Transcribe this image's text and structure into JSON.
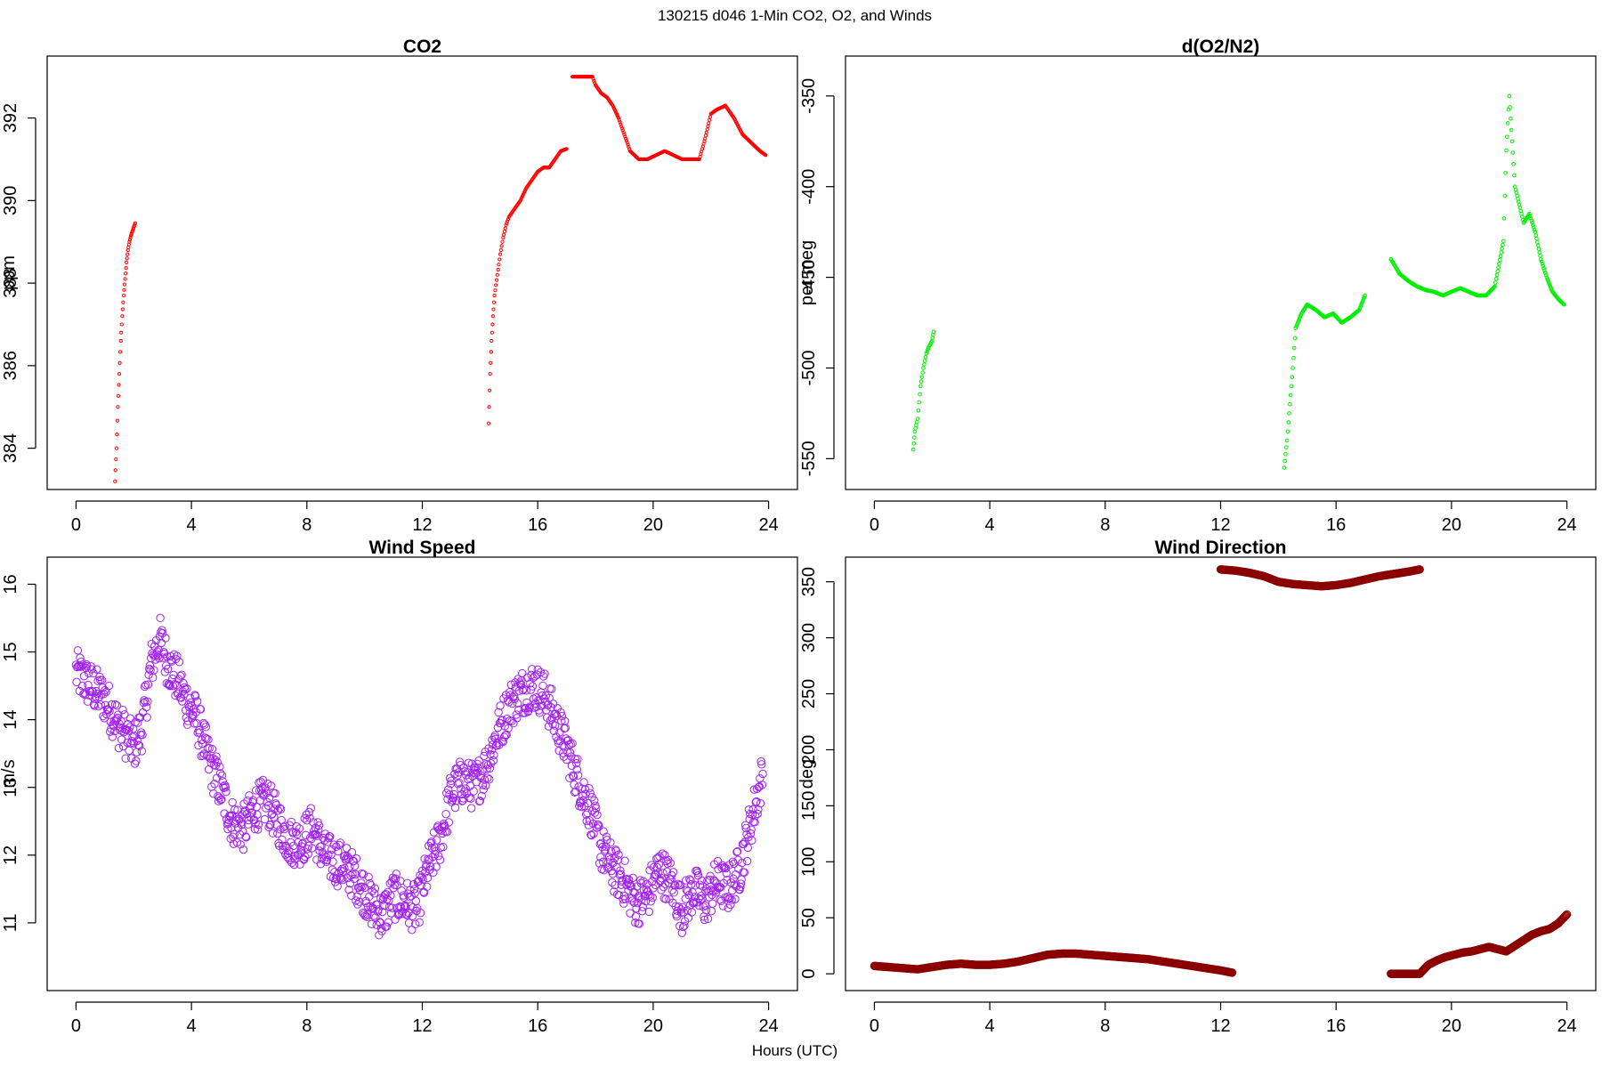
{
  "figure": {
    "title": "130215   d046   1-Min CO2, O2, and Winds",
    "xlabel": "Hours (UTC)"
  },
  "chart_data": [
    {
      "type": "scatter",
      "title": "CO2",
      "ylabel": "ppm",
      "xlim": [
        -1,
        25
      ],
      "ylim": [
        383.0,
        393.5
      ],
      "xticks": [
        0,
        4,
        8,
        12,
        16,
        20,
        24
      ],
      "yticks": [
        384,
        386,
        388,
        390,
        392
      ],
      "color": "#ff0000",
      "marker_size": 1.6,
      "segments": [
        {
          "x": [
            1.35,
            1.4,
            1.45,
            1.5,
            1.55,
            1.6,
            1.65,
            1.7,
            1.75,
            1.8,
            1.85,
            1.9,
            1.95,
            2.0,
            2.05
          ],
          "y": [
            383.2,
            384.0,
            385.0,
            385.8,
            386.6,
            387.2,
            387.7,
            388.1,
            388.5,
            388.8,
            389.0,
            389.15,
            389.25,
            389.35,
            389.45
          ]
        },
        {
          "x": [
            14.3,
            14.35,
            14.4,
            14.45,
            14.5,
            14.6,
            14.7,
            14.8,
            14.9,
            15.0,
            15.2,
            15.4,
            15.6,
            15.8,
            16.0,
            16.2,
            16.4,
            16.6,
            16.8,
            17.0
          ],
          "y": [
            384.6,
            385.8,
            386.6,
            387.2,
            387.7,
            388.2,
            388.7,
            389.1,
            389.4,
            389.6,
            389.8,
            390.0,
            390.3,
            390.5,
            390.7,
            390.8,
            390.8,
            391.0,
            391.2,
            391.25
          ]
        },
        {
          "x": [
            17.2,
            17.9,
            18.0,
            18.2,
            18.4,
            18.6,
            18.8,
            19.0,
            19.2,
            19.5,
            19.8,
            20.1,
            20.4,
            20.7,
            21.0,
            21.3,
            21.6,
            21.8,
            22.0,
            22.2,
            22.5,
            22.8,
            23.1,
            23.4,
            23.7,
            23.9
          ],
          "y": [
            393.0,
            393.0,
            392.8,
            392.6,
            392.5,
            392.3,
            392.0,
            391.6,
            391.2,
            391.0,
            391.0,
            391.1,
            391.2,
            391.1,
            391.0,
            391.0,
            391.0,
            391.5,
            392.1,
            392.2,
            392.3,
            392.0,
            391.6,
            391.4,
            391.2,
            391.1
          ]
        }
      ]
    },
    {
      "type": "scatter",
      "title": "d(O2/N2)",
      "ylabel": "per meg",
      "xlim": [
        -1,
        25
      ],
      "ylim": [
        -567,
        -328
      ],
      "xticks": [
        0,
        4,
        8,
        12,
        16,
        20,
        24
      ],
      "yticks": [
        -550,
        -500,
        -450,
        -400,
        -350
      ],
      "color": "#00ee00",
      "marker_size": 1.8,
      "segments": [
        {
          "x": [
            1.35,
            1.4,
            1.5,
            1.6,
            1.7,
            1.8,
            1.9,
            2.0,
            2.05
          ],
          "y": [
            -545,
            -535,
            -528,
            -510,
            -500,
            -492,
            -488,
            -485,
            -480
          ]
        },
        {
          "x": [
            14.2,
            14.3,
            14.4,
            14.5,
            14.6,
            14.8,
            15.0,
            15.3,
            15.6,
            15.9,
            16.2,
            16.5,
            16.8,
            17.0
          ],
          "y": [
            -555,
            -540,
            -520,
            -500,
            -478,
            -470,
            -465,
            -468,
            -472,
            -470,
            -475,
            -472,
            -468,
            -460
          ]
        },
        {
          "x": [
            17.9,
            18.2,
            18.5,
            18.8,
            19.1,
            19.4,
            19.7,
            20.0,
            20.3,
            20.6,
            20.9,
            21.2,
            21.5,
            21.8,
            21.9,
            22.0,
            22.2,
            22.5,
            22.7,
            22.9,
            23.1,
            23.3,
            23.5,
            23.7,
            23.9
          ],
          "y": [
            -440,
            -448,
            -452,
            -455,
            -457,
            -458,
            -460,
            -458,
            -456,
            -458,
            -460,
            -460,
            -455,
            -430,
            -380,
            -350,
            -400,
            -420,
            -415,
            -425,
            -440,
            -450,
            -458,
            -462,
            -465
          ]
        }
      ]
    },
    {
      "type": "scatter",
      "title": "Wind Speed",
      "ylabel": "m/s",
      "xlim": [
        -1,
        25
      ],
      "ylim": [
        10.0,
        16.4
      ],
      "xticks": [
        0,
        4,
        8,
        12,
        16,
        20,
        24
      ],
      "yticks": [
        11,
        12,
        13,
        14,
        15,
        16
      ],
      "color": "#a020f0",
      "marker_size": 4.2,
      "noise": 0.35,
      "x": [
        0,
        0.5,
        1.0,
        1.5,
        2.0,
        2.3,
        2.6,
        2.9,
        3.2,
        3.5,
        3.8,
        4.2,
        4.6,
        5.0,
        5.4,
        5.8,
        6.2,
        6.6,
        7.0,
        7.4,
        7.8,
        8.2,
        8.6,
        9.0,
        9.4,
        9.8,
        10.2,
        10.6,
        11.0,
        11.4,
        11.8,
        12.2,
        12.6,
        13.0,
        13.4,
        13.8,
        14.2,
        14.6,
        15.0,
        15.4,
        15.8,
        16.2,
        16.6,
        17.0,
        17.4,
        17.8,
        18.2,
        18.6,
        19.0,
        19.4,
        19.8,
        20.2,
        20.6,
        21.0,
        21.4,
        21.8,
        22.2,
        22.6,
        23.0,
        23.4,
        23.8
      ],
      "y": [
        14.7,
        14.5,
        14.3,
        13.9,
        13.6,
        13.9,
        14.8,
        15.2,
        14.8,
        14.6,
        14.3,
        14.0,
        13.4,
        13.0,
        12.5,
        12.4,
        12.7,
        12.8,
        12.5,
        12.2,
        12.2,
        12.4,
        12.0,
        11.9,
        11.8,
        11.6,
        11.3,
        11.1,
        11.4,
        11.3,
        11.2,
        11.8,
        12.2,
        12.9,
        13.1,
        13.0,
        13.3,
        13.8,
        14.2,
        14.4,
        14.5,
        14.4,
        14.0,
        13.6,
        13.1,
        12.7,
        12.1,
        11.8,
        11.6,
        11.3,
        11.4,
        11.8,
        11.6,
        11.2,
        11.5,
        11.3,
        11.6,
        11.5,
        11.8,
        12.5,
        13.2
      ]
    },
    {
      "type": "scatter",
      "title": "Wind Direction",
      "ylabel": "deg",
      "xlim": [
        -1,
        25
      ],
      "ylim": [
        -15,
        372
      ],
      "xticks": [
        0,
        4,
        8,
        12,
        16,
        20,
        24
      ],
      "yticks": [
        0,
        50,
        100,
        150,
        200,
        250,
        300,
        350
      ],
      "color": "#8b0000",
      "marker_size": 4.2,
      "segments": [
        {
          "x": [
            0,
            0.5,
            1.0,
            1.5,
            2.0,
            2.5,
            3.0,
            3.5,
            4.0,
            4.5,
            5.0,
            5.5,
            6.0,
            6.5,
            7.0,
            7.5,
            8.0,
            8.5,
            9.0,
            9.5,
            10.0,
            10.5,
            11.0,
            11.5,
            12.0,
            12.4
          ],
          "y": [
            7,
            6,
            5,
            4,
            6,
            8,
            9,
            8,
            8,
            9,
            11,
            14,
            17,
            18,
            18,
            17,
            16,
            15,
            14,
            13,
            11,
            9,
            7,
            5,
            3,
            1
          ]
        },
        {
          "x": [
            12.0,
            12.5,
            13.0,
            13.5,
            14.0,
            14.5,
            15.0,
            15.5,
            16.0,
            16.5,
            17.0,
            17.5,
            18.0,
            18.5,
            18.9
          ],
          "y": [
            361,
            360,
            358,
            355,
            350,
            348,
            347,
            346,
            347,
            349,
            352,
            355,
            357,
            359,
            361
          ]
        },
        {
          "x": [
            17.9,
            18.9,
            19.2,
            19.5,
            19.8,
            20.1,
            20.4,
            20.7,
            21.0,
            21.3,
            21.6,
            21.9,
            22.2,
            22.5,
            22.8,
            23.1,
            23.4,
            23.7,
            24.0
          ],
          "y": [
            0,
            0,
            8,
            12,
            15,
            17,
            19,
            20,
            22,
            24,
            22,
            20,
            25,
            30,
            35,
            38,
            40,
            45,
            53
          ]
        }
      ]
    }
  ]
}
